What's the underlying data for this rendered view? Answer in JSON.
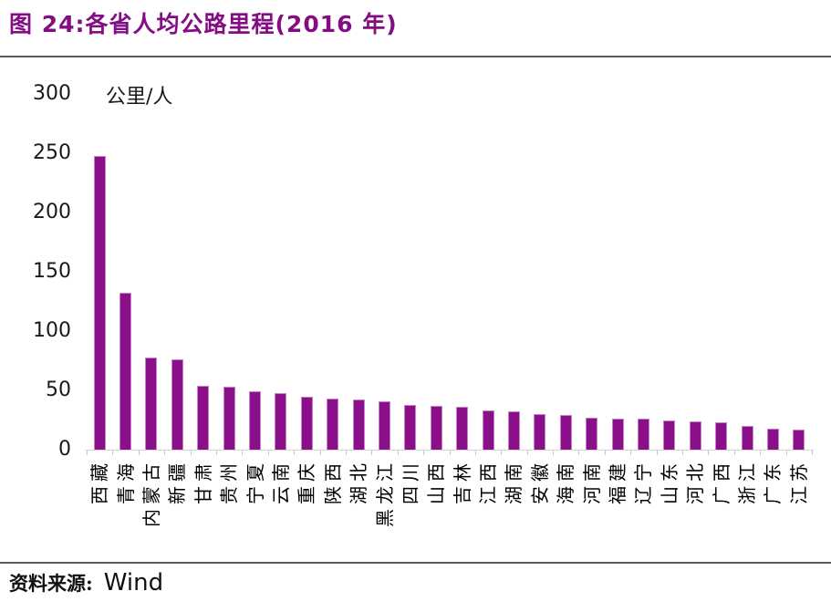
{
  "chart_data": {
    "type": "bar",
    "title": "图 24:各省人均公路里程(2016 年)",
    "unit_label": "公里/人",
    "source_label": "资料来源:",
    "source_name": "Wind",
    "categories": [
      "西藏",
      "青海",
      "内蒙古",
      "新疆",
      "甘肃",
      "贵州",
      "宁夏",
      "云南",
      "重庆",
      "陕西",
      "湖北",
      "黑龙江",
      "四川",
      "山西",
      "吉林",
      "江西",
      "湖南",
      "安徽",
      "海南",
      "河南",
      "福建",
      "辽宁",
      "山东",
      "河北",
      "广西",
      "浙江",
      "广东",
      "江苏"
    ],
    "values": [
      248,
      132,
      78,
      76,
      54,
      53,
      49,
      48,
      45,
      43,
      42,
      41,
      38,
      37,
      36,
      33,
      32,
      30,
      29,
      27,
      26,
      26,
      25,
      24,
      23,
      20,
      18,
      17
    ],
    "xlabel": "",
    "ylabel": "公里/人",
    "ylim": [
      0,
      300
    ],
    "yticks": [
      0,
      50,
      100,
      150,
      200,
      250,
      300
    ],
    "grid": false,
    "legend": "none",
    "bar_color": "#8B0E8B",
    "bar_border_color": "#C583C5",
    "title_color": "#840D84",
    "divider_color": "#595959",
    "axis_line_color": "#D6D6D6",
    "tick_text_color": "#1A1A1A"
  }
}
